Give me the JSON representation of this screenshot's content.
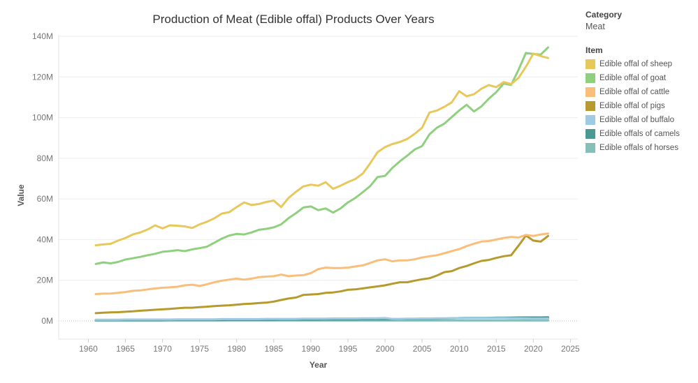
{
  "title": "Production of Meat (Edible offal) Products Over Years",
  "legend": {
    "category_heading": "Category",
    "category_value": "Meat",
    "item_heading": "Item"
  },
  "chart_data": {
    "type": "line",
    "title": "Production of Meat (Edible offal) Products Over Years",
    "xlabel": "Year",
    "ylabel": "Value",
    "xlim": [
      1956,
      2026
    ],
    "ylim": [
      -1000000,
      144000000
    ],
    "x_ticks": [
      1960,
      1965,
      1970,
      1975,
      1980,
      1985,
      1990,
      1995,
      2000,
      2005,
      2010,
      2015,
      2020,
      2025
    ],
    "y_ticks": [
      0,
      20000000,
      40000000,
      60000000,
      80000000,
      100000000,
      120000000,
      140000000
    ],
    "y_tick_labels": [
      "0M",
      "20M",
      "40M",
      "60M",
      "80M",
      "100M",
      "120M",
      "140M"
    ],
    "grid": true,
    "legend_position": "right",
    "x": [
      1961,
      1962,
      1963,
      1964,
      1965,
      1966,
      1967,
      1968,
      1969,
      1970,
      1971,
      1972,
      1973,
      1974,
      1975,
      1976,
      1977,
      1978,
      1979,
      1980,
      1981,
      1982,
      1983,
      1984,
      1985,
      1986,
      1987,
      1988,
      1989,
      1990,
      1991,
      1992,
      1993,
      1994,
      1995,
      1996,
      1997,
      1998,
      1999,
      2000,
      2001,
      2002,
      2003,
      2004,
      2005,
      2006,
      2007,
      2008,
      2009,
      2010,
      2011,
      2012,
      2013,
      2014,
      2015,
      2016,
      2017,
      2018,
      2019,
      2020,
      2021,
      2022
    ],
    "series": [
      {
        "name": "Edible offal of sheep",
        "color": "#E8C85A",
        "values": [
          37.2,
          37.6,
          37.9,
          39.5,
          40.8,
          42.5,
          43.5,
          45.0,
          47.0,
          45.5,
          47.0,
          46.8,
          46.5,
          45.7,
          47.5,
          48.8,
          50.5,
          52.8,
          53.5,
          56.0,
          58.3,
          57.0,
          57.5,
          58.5,
          59.2,
          56.0,
          60.5,
          63.5,
          66.2,
          67.0,
          66.5,
          68.2,
          65.0,
          66.5,
          68.3,
          69.8,
          72.5,
          77.5,
          83.0,
          85.5,
          87.0,
          88.0,
          89.5,
          92.0,
          95.0,
          102.5,
          103.5,
          105.3,
          107.5,
          113.0,
          110.5,
          111.5,
          114.2,
          116.0,
          115.0,
          117.5,
          116.5,
          119.5,
          125.0,
          131.5,
          130.3,
          129.3
        ]
      },
      {
        "name": "Edible offal of goat",
        "color": "#8FD07E",
        "values": [
          28.0,
          28.8,
          28.3,
          29.0,
          30.2,
          30.8,
          31.5,
          32.3,
          33.0,
          34.0,
          34.3,
          34.8,
          34.3,
          35.2,
          35.8,
          36.5,
          38.5,
          40.5,
          42.0,
          42.8,
          42.5,
          43.5,
          44.8,
          45.3,
          46.0,
          47.5,
          50.5,
          53.0,
          55.8,
          56.3,
          54.5,
          55.3,
          53.3,
          55.3,
          58.3,
          60.5,
          63.3,
          66.3,
          70.8,
          71.3,
          75.3,
          78.5,
          81.3,
          84.3,
          86.0,
          91.8,
          95.0,
          97.0,
          100.3,
          103.5,
          106.3,
          103.0,
          105.5,
          109.3,
          112.5,
          116.8,
          116.0,
          123.5,
          131.8,
          131.3,
          131.0,
          134.5
        ]
      },
      {
        "name": "Edible offal of cattle",
        "color": "#F9BE7A",
        "values": [
          13.2,
          13.4,
          13.5,
          13.8,
          14.2,
          14.8,
          15.0,
          15.5,
          16.0,
          16.3,
          16.5,
          16.8,
          17.5,
          17.8,
          17.2,
          18.0,
          19.0,
          19.8,
          20.3,
          20.8,
          20.3,
          20.8,
          21.5,
          21.8,
          22.0,
          22.8,
          22.0,
          22.3,
          22.5,
          23.5,
          25.5,
          26.2,
          26.0,
          26.0,
          26.2,
          26.8,
          27.3,
          28.5,
          29.8,
          30.3,
          29.3,
          29.8,
          29.8,
          30.3,
          31.2,
          31.8,
          32.3,
          33.3,
          34.3,
          35.3,
          36.8,
          38.0,
          39.0,
          39.3,
          40.0,
          40.8,
          41.3,
          41.0,
          42.3,
          41.8,
          42.5,
          43.0
        ]
      },
      {
        "name": "Edible offal of pigs",
        "color": "#B69A2E",
        "values": [
          3.8,
          4.0,
          4.2,
          4.3,
          4.5,
          4.7,
          5.0,
          5.2,
          5.5,
          5.7,
          5.9,
          6.2,
          6.5,
          6.5,
          6.8,
          7.0,
          7.3,
          7.5,
          7.7,
          8.0,
          8.3,
          8.5,
          8.8,
          9.0,
          9.5,
          10.3,
          11.0,
          11.5,
          12.8,
          13.0,
          13.2,
          13.8,
          14.0,
          14.5,
          15.3,
          15.5,
          16.0,
          16.5,
          17.0,
          17.5,
          18.3,
          19.0,
          19.0,
          19.8,
          20.5,
          21.0,
          22.3,
          24.0,
          24.5,
          26.0,
          27.0,
          28.3,
          29.5,
          30.0,
          31.0,
          31.8,
          32.3,
          37.0,
          42.0,
          39.5,
          39.0,
          41.8
        ]
      },
      {
        "name": "Edible offal of buffalo",
        "color": "#9FCAE4",
        "values": [
          0.6,
          0.6,
          0.6,
          0.6,
          0.7,
          0.7,
          0.7,
          0.7,
          0.7,
          0.7,
          0.7,
          0.8,
          0.8,
          0.8,
          0.8,
          0.8,
          0.8,
          0.9,
          0.9,
          0.9,
          0.9,
          0.9,
          0.9,
          1.0,
          1.0,
          1.0,
          1.0,
          1.0,
          1.1,
          1.1,
          1.1,
          1.1,
          1.2,
          1.2,
          1.2,
          1.2,
          1.3,
          1.3,
          1.3,
          1.4,
          1.0,
          1.0,
          1.1,
          1.1,
          1.2,
          1.2,
          1.3,
          1.3,
          1.3,
          1.4,
          1.4,
          1.4,
          1.4,
          1.4,
          1.4,
          1.4,
          1.3,
          1.3,
          1.2,
          1.1,
          1.1,
          1.1
        ]
      },
      {
        "name": "Edible offals of camels",
        "color": "#4A9A93",
        "values": [
          0.3,
          0.3,
          0.3,
          0.3,
          0.3,
          0.3,
          0.3,
          0.3,
          0.3,
          0.3,
          0.4,
          0.4,
          0.4,
          0.4,
          0.4,
          0.4,
          0.4,
          0.4,
          0.5,
          0.5,
          0.5,
          0.5,
          0.5,
          0.5,
          0.5,
          0.6,
          0.6,
          0.6,
          0.6,
          0.6,
          0.6,
          0.7,
          0.7,
          0.7,
          0.7,
          0.7,
          0.8,
          0.8,
          0.8,
          0.8,
          0.8,
          0.9,
          0.9,
          0.9,
          1.0,
          1.0,
          1.1,
          1.2,
          1.3,
          1.4,
          1.5,
          1.5,
          1.5,
          1.5,
          1.6,
          1.6,
          1.6,
          1.7,
          1.7,
          1.7,
          1.7,
          1.8
        ]
      },
      {
        "name": "Edible offals of horses",
        "color": "#86BFB8",
        "values": [
          0.2,
          0.2,
          0.2,
          0.2,
          0.2,
          0.2,
          0.2,
          0.2,
          0.2,
          0.2,
          0.2,
          0.2,
          0.2,
          0.2,
          0.2,
          0.2,
          0.2,
          0.2,
          0.2,
          0.2,
          0.2,
          0.2,
          0.2,
          0.2,
          0.2,
          0.2,
          0.2,
          0.2,
          0.2,
          0.2,
          0.2,
          0.2,
          0.2,
          0.2,
          0.2,
          0.2,
          0.2,
          0.2,
          0.2,
          0.2,
          0.2,
          0.2,
          0.2,
          0.2,
          0.2,
          0.2,
          0.2,
          0.2,
          0.2,
          0.2,
          0.2,
          0.2,
          0.2,
          0.2,
          0.2,
          0.2,
          0.2,
          0.2,
          0.2,
          0.2,
          0.2,
          0.2
        ]
      }
    ]
  }
}
